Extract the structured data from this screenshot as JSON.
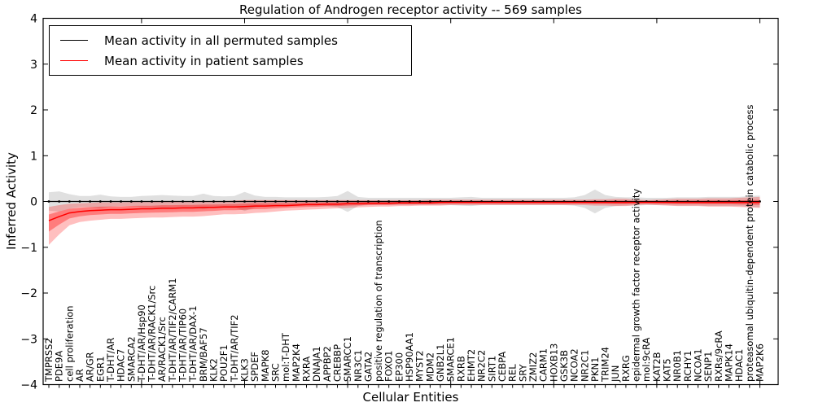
{
  "title": "Regulation of Androgen receptor activity -- 569 samples",
  "legend": {
    "items": [
      {
        "label": "Mean activity in all permuted samples",
        "color": "#000000"
      },
      {
        "label": "Mean activity in patient samples",
        "color": "#ff0000"
      }
    ],
    "position": "upper left"
  },
  "chart_data": {
    "type": "line",
    "title": "Regulation of Androgen receptor activity -- 569 samples",
    "xlabel": "Cellular Entities",
    "ylabel": "Inferred Activity",
    "ylim": [
      -4,
      4
    ],
    "yticks": [
      4,
      3,
      2,
      1,
      0,
      -1,
      -2,
      -3,
      -4
    ],
    "ytick_labels": [
      "4",
      "3",
      "2",
      "1",
      "0",
      "−1",
      "−2",
      "−3",
      "−4"
    ],
    "xticks": [
      10,
      20,
      30,
      40,
      50,
      60,
      70
    ],
    "grid": false,
    "legend_position": "upper left",
    "categories": [
      "TMPRSS2",
      "PDE9A",
      "cell proliferation",
      "AR",
      "AR/GR",
      "EGR1",
      "T-DHT/AR",
      "HDAC7",
      "SMARCA2",
      "T-DHT/AR/Hsp90",
      "T-DHT/AR/RACK1/Src",
      "AR/RACK1/Src",
      "T-DHT/AR/TIF2/CARM1",
      "T-DHT/AR/TIP60",
      "T-DHT/AR/DAX-1",
      "BRM/BAF57",
      "KLK2",
      "POU2F1",
      "T-DHT/AR/TIF2",
      "KLK3",
      "SPDEF",
      "MAPK8",
      "SRC",
      "mol:T-DHT",
      "MAP2K4",
      "RXRA",
      "DNAJA1",
      "APPBP2",
      "CREBBP",
      "SMARCC1",
      "NR3C1",
      "GATA2",
      "positive regulation of transcription",
      "FOXO1",
      "EP300",
      "HSP90AA1",
      "MYST2",
      "MDM2",
      "GNB2L1",
      "SMARCE1",
      "RXRB",
      "EHMT2",
      "NR2C2",
      "SIRT1",
      "CEBPA",
      "REL",
      "SRY",
      "ZMIZ2",
      "CARM1",
      "HOXB13",
      "GSK3B",
      "NCOA2",
      "NR2C1",
      "PKN1",
      "TRIM24",
      "JUN",
      "RXRG",
      "epidermal growth factor receptor activity",
      "mol:9cRA",
      "KAT2B",
      "KAT5",
      "NR0B1",
      "RCHY1",
      "NCOA1",
      "SENP1",
      "RXRs/9cRA",
      "MAPK14",
      "HDAC1",
      "proteasomal ubiquitin-dependent protein catabolic process",
      "MAP2K6"
    ],
    "series": [
      {
        "name": "Mean activity in all permuted samples",
        "color": "#000000",
        "band_color": "#999999",
        "marker": true,
        "values": [
          0,
          0,
          0,
          0,
          0,
          0,
          0,
          0,
          0,
          0,
          0,
          0,
          0,
          0,
          0,
          0,
          0,
          0,
          0,
          0,
          0,
          0,
          0,
          0,
          0,
          0,
          0,
          0,
          0,
          0,
          0,
          0,
          0,
          0,
          0,
          0,
          0,
          0,
          0,
          0,
          0,
          0,
          0,
          0,
          0,
          0,
          0,
          0,
          0,
          0,
          0,
          0,
          0,
          0,
          0,
          0,
          0,
          0,
          0,
          0,
          0,
          0,
          0,
          0,
          0,
          0,
          0,
          0,
          0,
          0
        ],
        "band_upper": [
          0.2,
          0.22,
          0.16,
          0.12,
          0.12,
          0.15,
          0.11,
          0.1,
          0.1,
          0.12,
          0.13,
          0.14,
          0.13,
          0.12,
          0.12,
          0.17,
          0.12,
          0.11,
          0.12,
          0.21,
          0.13,
          0.1,
          0.1,
          0.09,
          0.09,
          0.09,
          0.09,
          0.1,
          0.12,
          0.23,
          0.1,
          0.08,
          0.08,
          0.08,
          0.08,
          0.08,
          0.08,
          0.08,
          0.08,
          0.08,
          0.09,
          0.1,
          0.08,
          0.08,
          0.08,
          0.08,
          0.08,
          0.08,
          0.08,
          0.08,
          0.08,
          0.09,
          0.14,
          0.26,
          0.14,
          0.1,
          0.09,
          0.09,
          0.08,
          0.08,
          0.08,
          0.09,
          0.09,
          0.09,
          0.1,
          0.1,
          0.1,
          0.1,
          0.12,
          0.13
        ],
        "band_lower": [
          -0.2,
          -0.22,
          -0.16,
          -0.12,
          -0.12,
          -0.15,
          -0.11,
          -0.1,
          -0.1,
          -0.12,
          -0.13,
          -0.14,
          -0.13,
          -0.12,
          -0.12,
          -0.17,
          -0.12,
          -0.11,
          -0.12,
          -0.21,
          -0.13,
          -0.1,
          -0.1,
          -0.09,
          -0.09,
          -0.09,
          -0.09,
          -0.1,
          -0.12,
          -0.23,
          -0.1,
          -0.08,
          -0.08,
          -0.08,
          -0.08,
          -0.08,
          -0.08,
          -0.08,
          -0.08,
          -0.08,
          -0.09,
          -0.1,
          -0.08,
          -0.08,
          -0.08,
          -0.08,
          -0.08,
          -0.08,
          -0.08,
          -0.08,
          -0.08,
          -0.09,
          -0.14,
          -0.26,
          -0.14,
          -0.1,
          -0.09,
          -0.09,
          -0.08,
          -0.08,
          -0.08,
          -0.09,
          -0.09,
          -0.09,
          -0.1,
          -0.1,
          -0.1,
          -0.1,
          -0.12,
          -0.13
        ]
      },
      {
        "name": "Mean activity in patient samples",
        "color": "#ff0000",
        "band_color": "#ff0000",
        "marker": false,
        "values": [
          -0.42,
          -0.33,
          -0.25,
          -0.22,
          -0.2,
          -0.19,
          -0.18,
          -0.18,
          -0.17,
          -0.16,
          -0.16,
          -0.15,
          -0.15,
          -0.14,
          -0.14,
          -0.13,
          -0.13,
          -0.12,
          -0.12,
          -0.11,
          -0.1,
          -0.1,
          -0.09,
          -0.09,
          -0.08,
          -0.07,
          -0.07,
          -0.06,
          -0.06,
          -0.05,
          -0.05,
          -0.04,
          -0.04,
          -0.04,
          -0.03,
          -0.03,
          -0.03,
          -0.03,
          -0.02,
          -0.02,
          -0.02,
          -0.02,
          -0.02,
          -0.02,
          -0.02,
          -0.02,
          -0.02,
          -0.02,
          -0.02,
          -0.02,
          -0.02,
          -0.02,
          -0.02,
          -0.02,
          -0.02,
          -0.02,
          -0.02,
          -0.02,
          -0.02,
          -0.02,
          -0.02,
          -0.02,
          -0.02,
          -0.02,
          -0.02,
          -0.02,
          -0.02,
          -0.02,
          -0.02,
          -0.02
        ],
        "band_upper": [
          -0.12,
          -0.08,
          -0.05,
          -0.04,
          -0.03,
          -0.02,
          -0.02,
          -0.02,
          -0.01,
          -0.01,
          -0.01,
          0.0,
          0.0,
          0.0,
          0.0,
          0.01,
          0.01,
          0.01,
          0.02,
          0.03,
          0.03,
          0.03,
          0.03,
          0.03,
          0.03,
          0.03,
          0.03,
          0.03,
          0.03,
          0.03,
          0.03,
          0.03,
          0.03,
          0.03,
          0.03,
          0.03,
          0.03,
          0.04,
          0.04,
          0.04,
          0.04,
          0.04,
          0.04,
          0.04,
          0.04,
          0.04,
          0.04,
          0.04,
          0.04,
          0.04,
          0.04,
          0.04,
          0.04,
          0.05,
          0.05,
          0.06,
          0.06,
          0.04,
          0.03,
          0.04,
          0.05,
          0.06,
          0.06,
          0.06,
          0.07,
          0.07,
          0.07,
          0.08,
          0.09,
          0.1
        ],
        "band_lower": [
          -0.95,
          -0.72,
          -0.52,
          -0.45,
          -0.42,
          -0.4,
          -0.38,
          -0.38,
          -0.37,
          -0.36,
          -0.35,
          -0.35,
          -0.34,
          -0.33,
          -0.33,
          -0.32,
          -0.3,
          -0.28,
          -0.28,
          -0.27,
          -0.25,
          -0.24,
          -0.22,
          -0.2,
          -0.19,
          -0.18,
          -0.17,
          -0.16,
          -0.15,
          -0.14,
          -0.13,
          -0.12,
          -0.11,
          -0.11,
          -0.1,
          -0.1,
          -0.09,
          -0.09,
          -0.09,
          -0.08,
          -0.08,
          -0.08,
          -0.08,
          -0.08,
          -0.08,
          -0.08,
          -0.08,
          -0.08,
          -0.08,
          -0.08,
          -0.08,
          -0.08,
          -0.08,
          -0.09,
          -0.09,
          -0.1,
          -0.1,
          -0.08,
          -0.07,
          -0.08,
          -0.09,
          -0.1,
          -0.1,
          -0.1,
          -0.11,
          -0.11,
          -0.11,
          -0.12,
          -0.13,
          -0.14
        ]
      }
    ]
  }
}
